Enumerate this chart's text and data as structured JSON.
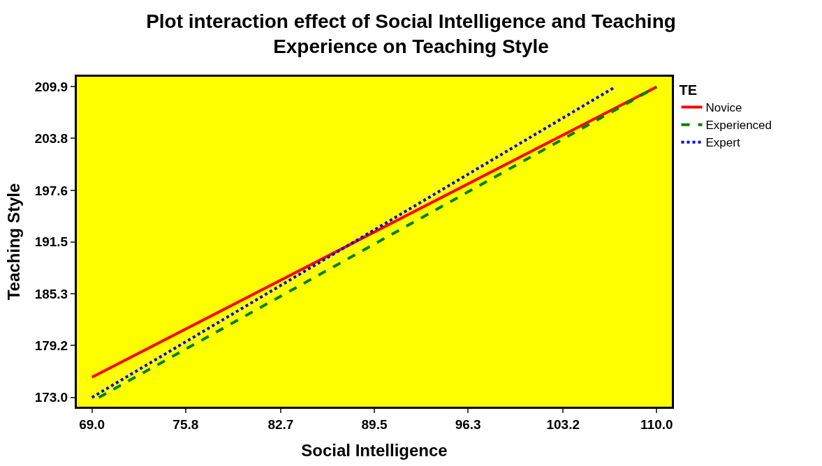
{
  "chart_data": {
    "type": "line",
    "title": "Plot interaction effect of Social Intelligence and Teaching\nExperience on Teaching Style",
    "xlabel": "Social Intelligence",
    "ylabel": "Teaching Style",
    "legend_title": "TE",
    "legend": "top right",
    "series": [
      {
        "name": "Novice",
        "color": "#ff0000",
        "line_style": "solid",
        "x": [
          69.0,
          110.0
        ],
        "values": [
          175.4,
          209.9
        ]
      },
      {
        "name": "Experienced",
        "color": "#008000",
        "line_style": "dashed",
        "x": [
          69.5,
          110.0
        ],
        "values": [
          173.0,
          209.9
        ]
      },
      {
        "name": "Expert",
        "color": "#0000ff",
        "line_style": "dotted",
        "x": [
          69.0,
          107.0
        ],
        "values": [
          173.0,
          209.9
        ]
      }
    ],
    "xlim": [
      67.9,
      111.1
    ],
    "ylim": [
      171.9,
      211.1
    ],
    "xticks": [
      {
        "value": 69.0,
        "label": "69.0"
      },
      {
        "value": 75.8,
        "label": "75.8"
      },
      {
        "value": 82.7,
        "label": "82.7"
      },
      {
        "value": 89.5,
        "label": "89.5"
      },
      {
        "value": 96.3,
        "label": "96.3"
      },
      {
        "value": 103.2,
        "label": "103.2"
      },
      {
        "value": 110.0,
        "label": "110.0"
      }
    ],
    "yticks": [
      {
        "value": 173.0,
        "label": "173.0"
      },
      {
        "value": 179.2,
        "label": "179.2"
      },
      {
        "value": 185.3,
        "label": "185.3"
      },
      {
        "value": 191.5,
        "label": "191.5"
      },
      {
        "value": 197.6,
        "label": "197.6"
      },
      {
        "value": 203.8,
        "label": "203.8"
      },
      {
        "value": 209.9,
        "label": "209.9"
      }
    ],
    "grid": false,
    "marker": "none"
  }
}
